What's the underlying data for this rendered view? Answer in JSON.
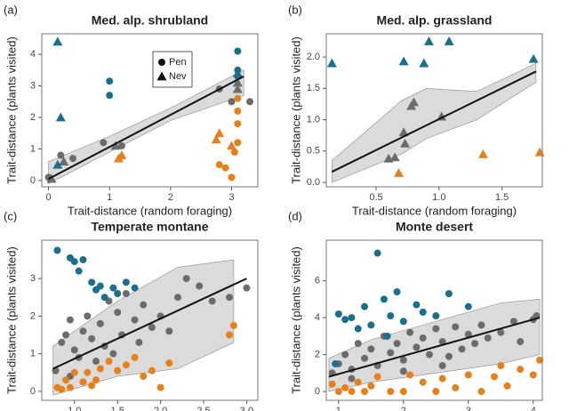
{
  "chart_data": [
    {
      "type": "scatter",
      "panel_label": "(a)",
      "title": "Med. alp. shrubland",
      "xlabel": "Trait-distance (random foraging)",
      "ylabel": "Trait-distance (plants visited)",
      "xlim": [
        -0.11,
        3.43
      ],
      "ylim": [
        -0.2,
        4.65
      ],
      "xticks": [
        0,
        1,
        2,
        3
      ],
      "yticks": [
        0,
        1,
        2,
        3,
        4
      ],
      "legend": [
        {
          "label": "Pen",
          "marker": "circle"
        },
        {
          "label": "Nev",
          "marker": "triangle"
        }
      ],
      "band": {
        "x": [
          0,
          1,
          2,
          3.2
        ],
        "lower": [
          -0.1,
          0.9,
          1.9,
          2.7
        ],
        "upper": [
          0.6,
          1.4,
          2.3,
          3.5
        ]
      },
      "fit": {
        "x": [
          0,
          3.2
        ],
        "values": [
          0.05,
          3.3
        ]
      },
      "series": [
        {
          "color": "#6b6b6b",
          "marker": "circle",
          "x": [
            0,
            0.2,
            0.4,
            0.9,
            1.2,
            3.0,
            3.3,
            2.8
          ],
          "values": [
            0.1,
            0.8,
            0.7,
            1.2,
            1.1,
            2.5,
            2.5,
            2.9
          ]
        },
        {
          "color": "#6b6b6b",
          "marker": "triangle",
          "x": [
            0.05,
            0.25,
            1.1,
            3.1,
            3.1
          ],
          "values": [
            0.05,
            0.6,
            1.1,
            3.1,
            2.9
          ]
        },
        {
          "color": "#1a6f8c",
          "marker": "circle",
          "x": [
            1.0,
            1.0,
            3.1,
            3.1,
            3.1
          ],
          "values": [
            3.15,
            2.7,
            4.1,
            3.5,
            3.3
          ]
        },
        {
          "color": "#1a6f8c",
          "marker": "triangle",
          "x": [
            0.15,
            0.2,
            0.15,
            3.1
          ],
          "values": [
            4.4,
            2.0,
            0.5,
            3.4
          ]
        },
        {
          "color": "#e8801a",
          "marker": "circle",
          "x": [
            3.1,
            3.1,
            3.1,
            3.1,
            3.05,
            2.8,
            2.9,
            3.0
          ],
          "values": [
            2.6,
            2.2,
            1.8,
            1.2,
            0.9,
            0.5,
            0.4,
            0.1
          ]
        },
        {
          "color": "#e8801a",
          "marker": "triangle",
          "x": [
            2.75,
            2.8,
            3.0,
            1.15,
            1.2
          ],
          "values": [
            1.3,
            1.5,
            1.1,
            0.7,
            0.8
          ]
        }
      ]
    },
    {
      "type": "scatter",
      "panel_label": "(b)",
      "title": "Med. alp. grassland",
      "xlabel": "Trait-distance (random foraging)",
      "ylabel": "Trait-distance (plants visited)",
      "xlim": [
        0.105,
        1.82
      ],
      "ylim": [
        -0.07,
        2.37
      ],
      "xticks": [
        {
          "value": 0.5,
          "label": "0.5"
        },
        {
          "value": 1,
          "label": "1.0"
        },
        {
          "value": 1.5,
          "label": "1.5"
        }
      ],
      "yticks": [
        {
          "value": 0,
          "label": "0.0"
        },
        {
          "value": 0.5,
          "label": "0.5"
        },
        {
          "value": 1,
          "label": "1.0"
        },
        {
          "value": 1.5,
          "label": "1.5"
        },
        {
          "value": 2,
          "label": "2.0"
        }
      ],
      "band": {
        "x": [
          0.15,
          0.7,
          0.9,
          1.3,
          1.77
        ],
        "lower": [
          0.0,
          0.45,
          0.7,
          1.0,
          1.6
        ],
        "upper": [
          0.35,
          1.3,
          1.5,
          1.45,
          1.9
        ]
      },
      "fit": {
        "x": [
          0.15,
          1.77
        ],
        "values": [
          0.17,
          1.77
        ]
      },
      "series": [
        {
          "color": "#6b6b6b",
          "marker": "triangle",
          "x": [
            0.6,
            0.65,
            0.73,
            0.78,
            0.8,
            1.02,
            0.72
          ],
          "values": [
            0.38,
            0.4,
            0.62,
            1.22,
            1.28,
            1.05,
            0.8
          ]
        },
        {
          "color": "#1a6f8c",
          "marker": "triangle",
          "x": [
            0.15,
            0.72,
            0.88,
            0.92,
            1.08,
            1.75
          ],
          "values": [
            1.9,
            1.93,
            1.9,
            2.25,
            2.25,
            1.97
          ]
        },
        {
          "color": "#e8801a",
          "marker": "triangle",
          "x": [
            0.68,
            1.35,
            1.8
          ],
          "values": [
            0.15,
            0.45,
            0.48
          ]
        }
      ]
    },
    {
      "type": "scatter",
      "panel_label": "(c)",
      "title": "Temperate montane",
      "ylabel": "Trait-distance (plants visited)",
      "xlim": [
        0.62,
        3.13
      ],
      "ylim": [
        -0.24,
        4.02
      ],
      "xticks": [
        {
          "value": 1,
          "label": "1.0"
        },
        {
          "value": 1.5,
          "label": "1.5"
        },
        {
          "value": 2,
          "label": "2.0"
        },
        {
          "value": 2.5,
          "label": "2.5"
        },
        {
          "value": 3,
          "label": "3.0"
        }
      ],
      "yticks": [
        0,
        1,
        2,
        3
      ],
      "band": {
        "x": [
          0.75,
          1.5,
          2.2,
          2.85
        ],
        "lower": [
          -0.1,
          0.4,
          0.6,
          1.3
        ],
        "upper": [
          1.2,
          2.4,
          3.3,
          3.5
        ]
      },
      "fit": {
        "x": [
          0.75,
          3.0
        ],
        "values": [
          0.6,
          3.0
        ]
      },
      "series": [
        {
          "color": "#6b6b6b",
          "marker": "circle",
          "x": [
            0.78,
            0.85,
            0.9,
            0.95,
            1.0,
            1.05,
            1.1,
            1.15,
            1.2,
            1.3,
            1.35,
            1.4,
            1.5,
            1.55,
            1.6,
            1.7,
            1.8,
            1.9,
            2.0,
            2.1,
            2.2,
            2.3,
            2.45,
            2.6,
            2.8,
            3.0,
            1.25,
            1.45,
            0.95,
            1.75
          ],
          "values": [
            0.55,
            1.3,
            1.5,
            1.9,
            1.1,
            0.9,
            1.6,
            2.0,
            1.4,
            1.8,
            1.2,
            2.4,
            2.1,
            1.5,
            2.6,
            1.9,
            2.3,
            1.7,
            2.0,
            1.6,
            2.5,
            3.0,
            2.8,
            2.4,
            2.5,
            2.75,
            0.8,
            1.0,
            0.4,
            1.3
          ]
        },
        {
          "color": "#1a6f8c",
          "marker": "circle",
          "x": [
            0.8,
            0.95,
            1.0,
            1.05,
            1.1,
            1.2,
            1.25,
            1.3,
            1.35,
            1.5,
            1.6,
            1.7,
            1.45
          ],
          "values": [
            3.75,
            3.55,
            3.45,
            3.2,
            3.5,
            2.9,
            2.7,
            2.8,
            2.5,
            2.6,
            2.9,
            2.75,
            2.75
          ]
        },
        {
          "color": "#e8801a",
          "marker": "circle",
          "x": [
            0.8,
            0.85,
            0.9,
            0.95,
            1.0,
            1.1,
            1.15,
            1.2,
            1.3,
            1.4,
            1.5,
            1.6,
            1.8,
            1.9,
            2.0,
            2.1,
            2.8,
            2.85,
            1.7,
            1.25
          ],
          "values": [
            0.1,
            0.05,
            0.3,
            0.1,
            0.5,
            0.25,
            0.5,
            0.15,
            0.6,
            0.8,
            0.55,
            0.7,
            0.4,
            0.55,
            0.1,
            0.75,
            1.5,
            1.75,
            0.9,
            0.3
          ]
        }
      ]
    },
    {
      "type": "scatter",
      "panel_label": "(d)",
      "title": "Monte desert",
      "ylabel": "Trait-distance (plants visited)",
      "xlim": [
        0.81,
        4.14
      ],
      "ylim": [
        -0.48,
        8.2
      ],
      "xticks": [
        1,
        2,
        3,
        4
      ],
      "yticks": [
        0,
        2,
        4,
        6
      ],
      "band": {
        "x": [
          0.85,
          1.5,
          2.5,
          3.5,
          4.1
        ],
        "lower": [
          0.0,
          0.5,
          1.0,
          1.5,
          2.0
        ],
        "upper": [
          1.8,
          2.8,
          3.8,
          4.8,
          5.0
        ]
      },
      "fit": {
        "x": [
          0.85,
          4.1
        ],
        "values": [
          0.8,
          4.0
        ]
      },
      "series": [
        {
          "color": "#6b6b6b",
          "marker": "circle",
          "x": [
            0.9,
            1.0,
            1.1,
            1.2,
            1.3,
            1.4,
            1.5,
            1.6,
            1.7,
            1.8,
            1.9,
            2.0,
            2.1,
            2.2,
            2.3,
            2.4,
            2.5,
            2.6,
            2.7,
            2.8,
            2.9,
            3.0,
            3.1,
            3.2,
            3.3,
            3.5,
            3.7,
            3.8,
            4.0,
            4.05,
            1.2,
            2.0,
            2.6
          ],
          "values": [
            1.0,
            1.5,
            2.0,
            1.2,
            2.6,
            1.8,
            2.3,
            1.4,
            3.0,
            2.1,
            2.6,
            1.7,
            3.2,
            2.4,
            2.9,
            2.0,
            3.4,
            2.7,
            1.9,
            3.5,
            2.3,
            3.1,
            2.6,
            3.6,
            2.9,
            3.2,
            3.8,
            2.7,
            3.9,
            4.1,
            0.7,
            1.1,
            1.4
          ]
        },
        {
          "color": "#1a6f8c",
          "marker": "circle",
          "x": [
            1.0,
            1.1,
            1.2,
            1.3,
            1.4,
            1.5,
            1.6,
            1.7,
            1.8,
            1.9,
            2.0,
            2.2,
            2.3,
            2.5,
            2.7,
            3.0,
            0.95,
            1.75
          ],
          "values": [
            4.2,
            3.9,
            4.0,
            3.4,
            4.6,
            3.6,
            7.5,
            5.0,
            4.1,
            5.4,
            3.8,
            4.7,
            4.3,
            4.1,
            5.3,
            4.6,
            1.5,
            3.0
          ]
        },
        {
          "color": "#e8801a",
          "marker": "circle",
          "x": [
            0.9,
            1.0,
            1.1,
            1.2,
            1.3,
            1.4,
            1.5,
            1.6,
            1.8,
            2.0,
            2.1,
            2.3,
            2.5,
            2.6,
            2.8,
            3.0,
            3.2,
            3.4,
            3.6,
            3.8,
            4.0,
            4.1,
            3.5
          ],
          "values": [
            0.4,
            0.0,
            0.2,
            0.0,
            0.5,
            0.0,
            0.3,
            0.8,
            0.0,
            0.0,
            0.9,
            0.5,
            0.0,
            0.7,
            0.2,
            0.9,
            0.0,
            0.8,
            0.3,
            1.2,
            0.9,
            1.7,
            1.4
          ]
        }
      ]
    }
  ]
}
